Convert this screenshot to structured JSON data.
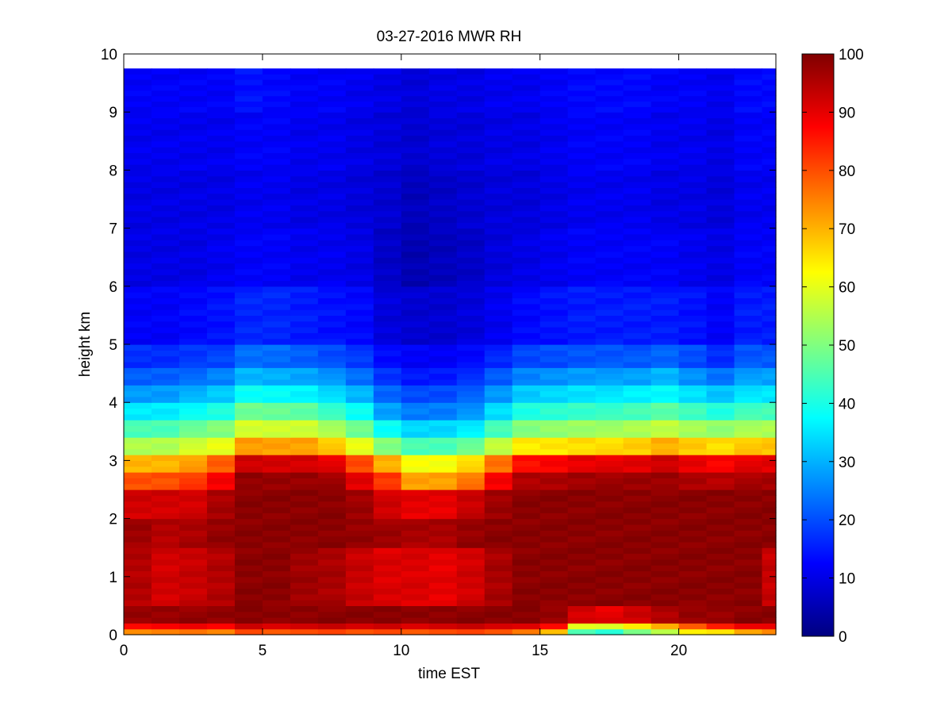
{
  "chart_data": {
    "type": "heatmap",
    "title": "03-27-2016 MWR RH",
    "xlabel": "time EST",
    "ylabel": "height km",
    "xlim": [
      0,
      23.5
    ],
    "ylim": [
      0,
      10
    ],
    "x_ticks": [
      "0",
      "5",
      "10",
      "15",
      "20"
    ],
    "y_ticks": [
      "0",
      "1",
      "2",
      "3",
      "4",
      "5",
      "6",
      "7",
      "8",
      "9",
      "10"
    ],
    "colorbar": {
      "range": [
        0,
        100
      ],
      "ticks": [
        "0",
        "10",
        "20",
        "30",
        "40",
        "50",
        "60",
        "70",
        "80",
        "90",
        "100"
      ],
      "colormap": "jet"
    },
    "grid": false,
    "data_extent": {
      "time_end": 23.5,
      "height_top": 9.75
    },
    "time_step_hours": 1,
    "layer_height_km": 0.1,
    "rh_percent_by_layer": [
      {
        "base_km": 0.0,
        "top_km": 0.1,
        "rh": [
          75,
          75,
          75,
          75,
          80,
          80,
          80,
          80,
          80,
          80,
          80,
          80,
          80,
          80,
          75,
          70,
          45,
          40,
          50,
          55,
          65,
          65,
          70,
          75
        ]
      },
      {
        "base_km": 0.1,
        "top_km": 0.2,
        "rh": [
          88,
          88,
          88,
          88,
          92,
          92,
          92,
          92,
          92,
          92,
          92,
          92,
          92,
          92,
          90,
          88,
          60,
          58,
          65,
          70,
          80,
          85,
          88,
          90
        ]
      },
      {
        "base_km": 0.2,
        "top_km": 0.5,
        "rh": [
          98,
          98,
          98,
          98,
          99,
          99,
          99,
          99,
          99,
          99,
          99,
          99,
          99,
          99,
          99,
          98,
          92,
          90,
          92,
          95,
          98,
          98,
          99,
          99
        ]
      },
      {
        "base_km": 0.5,
        "top_km": 1.5,
        "rh": [
          95,
          92,
          93,
          95,
          99,
          99,
          97,
          96,
          93,
          91,
          91,
          90,
          92,
          96,
          99,
          99,
          99,
          99,
          99,
          99,
          99,
          99,
          99,
          93
        ]
      },
      {
        "base_km": 1.5,
        "top_km": 2.0,
        "rh": [
          97,
          95,
          96,
          98,
          99,
          99,
          99,
          99,
          98,
          97,
          96,
          96,
          98,
          99,
          99,
          99,
          99,
          99,
          99,
          99,
          99,
          99,
          99,
          99
        ]
      },
      {
        "base_km": 2.0,
        "top_km": 2.5,
        "rh": [
          92,
          92,
          92,
          96,
          99,
          99,
          99,
          99,
          97,
          92,
          90,
          90,
          93,
          97,
          99,
          99,
          99,
          99,
          99,
          99,
          99,
          99,
          99,
          99
        ]
      },
      {
        "base_km": 2.5,
        "top_km": 2.8,
        "rh": [
          80,
          80,
          82,
          88,
          98,
          98,
          98,
          97,
          90,
          82,
          72,
          72,
          76,
          88,
          95,
          96,
          97,
          97,
          97,
          97,
          96,
          95,
          96,
          96
        ]
      },
      {
        "base_km": 2.8,
        "top_km": 3.1,
        "rh": [
          70,
          70,
          72,
          78,
          92,
          92,
          92,
          90,
          80,
          70,
          62,
          62,
          66,
          76,
          86,
          88,
          90,
          90,
          90,
          92,
          90,
          88,
          90,
          90
        ]
      },
      {
        "base_km": 3.1,
        "top_km": 3.4,
        "rh": [
          55,
          55,
          58,
          60,
          72,
          72,
          72,
          68,
          60,
          50,
          45,
          45,
          48,
          56,
          64,
          65,
          66,
          66,
          67,
          70,
          68,
          66,
          68,
          68
        ]
      },
      {
        "base_km": 3.4,
        "top_km": 3.7,
        "rh": [
          45,
          45,
          48,
          50,
          58,
          58,
          58,
          54,
          48,
          38,
          34,
          34,
          36,
          44,
          50,
          52,
          53,
          53,
          54,
          56,
          54,
          52,
          54,
          54
        ]
      },
      {
        "base_km": 3.7,
        "top_km": 4.0,
        "rh": [
          36,
          36,
          38,
          40,
          48,
          48,
          47,
          43,
          38,
          28,
          25,
          25,
          27,
          34,
          40,
          42,
          43,
          43,
          44,
          46,
          44,
          41,
          44,
          44
        ]
      },
      {
        "base_km": 4.0,
        "top_km": 4.3,
        "rh": [
          28,
          28,
          30,
          32,
          38,
          38,
          37,
          34,
          30,
          22,
          20,
          20,
          22,
          27,
          32,
          34,
          35,
          35,
          36,
          37,
          35,
          32,
          35,
          35
        ]
      },
      {
        "base_km": 4.3,
        "top_km": 4.6,
        "rh": [
          22,
          22,
          23,
          25,
          30,
          30,
          29,
          27,
          23,
          17,
          15,
          15,
          17,
          21,
          25,
          27,
          28,
          28,
          28,
          30,
          27,
          24,
          28,
          28
        ]
      },
      {
        "base_km": 4.6,
        "top_km": 5.0,
        "rh": [
          17,
          17,
          18,
          19,
          23,
          23,
          22,
          20,
          18,
          13,
          12,
          12,
          13,
          16,
          19,
          20,
          21,
          21,
          21,
          22,
          20,
          17,
          21,
          21
        ]
      },
      {
        "base_km": 5.0,
        "top_km": 6.0,
        "rh": [
          12,
          12,
          13,
          14,
          16,
          16,
          15,
          14,
          13,
          9,
          8,
          8,
          9,
          11,
          13,
          14,
          15,
          15,
          15,
          15,
          14,
          12,
          15,
          15
        ]
      },
      {
        "base_km": 6.0,
        "top_km": 7.0,
        "rh": [
          10,
          10,
          10,
          11,
          12,
          12,
          11,
          11,
          10,
          7,
          5,
          6,
          7,
          9,
          10,
          11,
          12,
          12,
          12,
          12,
          11,
          10,
          12,
          12
        ]
      },
      {
        "base_km": 7.0,
        "top_km": 8.0,
        "rh": [
          10,
          10,
          10,
          10,
          11,
          11,
          10,
          10,
          9,
          8,
          6,
          7,
          8,
          9,
          9,
          10,
          11,
          11,
          11,
          10,
          10,
          9,
          11,
          11
        ]
      },
      {
        "base_km": 8.0,
        "top_km": 9.0,
        "rh": [
          11,
          11,
          11,
          11,
          12,
          12,
          11,
          11,
          10,
          9,
          8,
          9,
          9,
          10,
          10,
          11,
          12,
          12,
          12,
          11,
          11,
          10,
          12,
          12
        ]
      },
      {
        "base_km": 9.0,
        "top_km": 9.75,
        "rh": [
          12,
          12,
          12,
          12,
          14,
          13,
          12,
          12,
          11,
          10,
          9,
          10,
          10,
          11,
          11,
          12,
          13,
          13,
          13,
          12,
          12,
          11,
          13,
          13
        ]
      }
    ]
  }
}
